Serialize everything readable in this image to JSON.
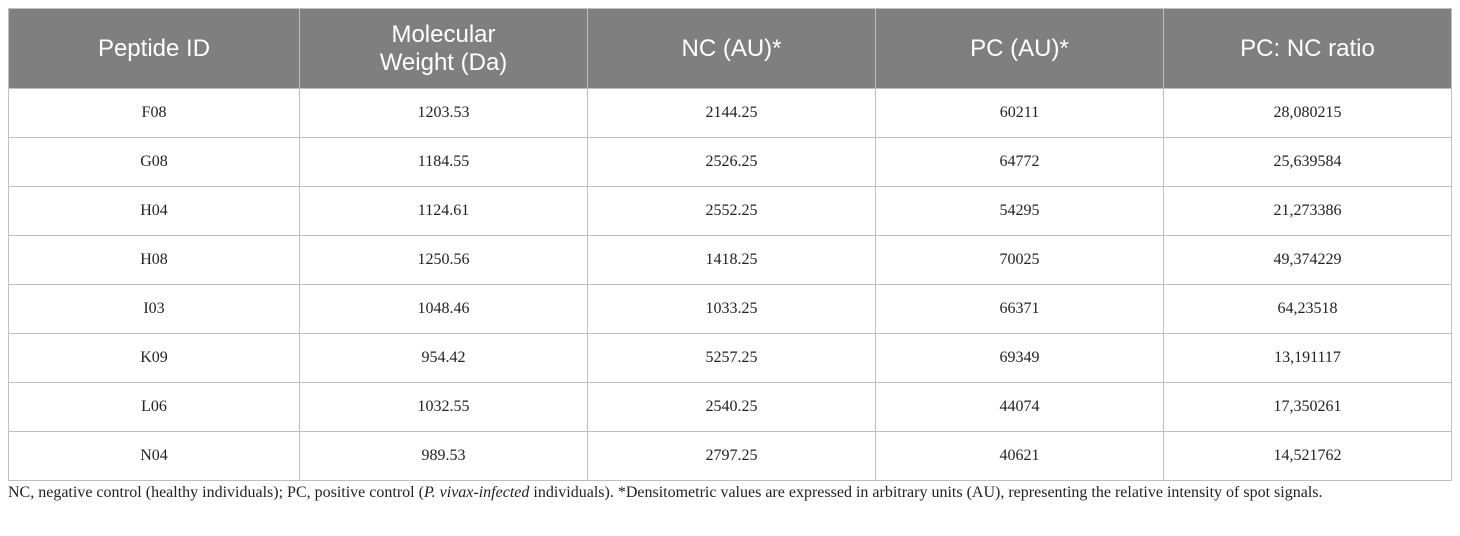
{
  "table": {
    "headers": [
      "Peptide ID",
      "Molecular Weight (Da)",
      "NC (AU)*",
      "PC (AU)*",
      "PC: NC ratio"
    ],
    "rows": [
      [
        "F08",
        "1203.53",
        "2144.25",
        "60211",
        "28,080215"
      ],
      [
        "G08",
        "1184.55",
        "2526.25",
        "64772",
        "25,639584"
      ],
      [
        "H04",
        "1124.61",
        "2552.25",
        "54295",
        "21,273386"
      ],
      [
        "H08",
        "1250.56",
        "1418.25",
        "70025",
        "49,374229"
      ],
      [
        "I03",
        "1048.46",
        "1033.25",
        "66371",
        "64,23518"
      ],
      [
        "K09",
        "954.42",
        "5257.25",
        "69349",
        "13,191117"
      ],
      [
        "L06",
        "1032.55",
        "2540.25",
        "44074",
        "17,350261"
      ],
      [
        "N04",
        "989.53",
        "2797.25",
        "40621",
        "14,521762"
      ]
    ]
  },
  "footnote": [
    "NC, negative control (healthy individuals); PC, positive control (",
    "P. vivax-infected",
    " individuals). *Densitometric values are expressed in arbitrary units (AU), representing the relative intensity of spot signals."
  ]
}
